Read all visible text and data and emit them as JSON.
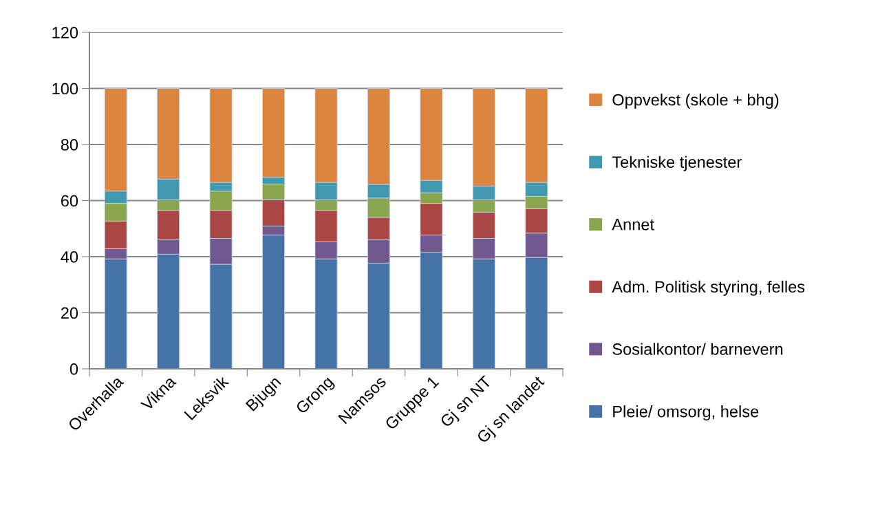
{
  "chart_data": {
    "type": "bar",
    "stacked": true,
    "categories": [
      "Overhalla",
      "Vikna",
      "Leksvik",
      "Bjugn",
      "Grong",
      "Namsos",
      "Gruppe 1",
      "Gj sn NT",
      "Gj sn landet"
    ],
    "series": [
      {
        "name": "Pleie/ omsorg, helse",
        "color": "#4572a7",
        "values": [
          39.2,
          40.9,
          37.3,
          47.7,
          39.2,
          37.7,
          41.6,
          39.2,
          39.7
        ]
      },
      {
        "name": "Sosialkontor/ barnevern",
        "color": "#71588f",
        "values": [
          3.6,
          5.1,
          9.2,
          3.2,
          6.1,
          8.3,
          6.1,
          7.3,
          8.7
        ]
      },
      {
        "name": "Adm. Politisk styring, felles",
        "color": "#aa4643",
        "values": [
          9.9,
          10.5,
          10.0,
          9.4,
          11.2,
          8.0,
          11.3,
          9.4,
          8.7
        ]
      },
      {
        "name": "Annet",
        "color": "#89a54e",
        "values": [
          6.3,
          3.8,
          6.9,
          5.6,
          3.8,
          6.9,
          3.8,
          4.4,
          4.4
        ]
      },
      {
        "name": "Tekniske tjenester",
        "color": "#4198af",
        "values": [
          4.4,
          7.4,
          3.1,
          2.5,
          6.2,
          4.9,
          4.4,
          4.9,
          5.0
        ]
      },
      {
        "name": "Oppvekst (skole + bhg)",
        "color": "#db843d",
        "values": [
          36.6,
          32.3,
          33.5,
          31.6,
          33.5,
          34.2,
          32.8,
          34.8,
          33.5
        ]
      }
    ],
    "ylim": [
      0,
      120
    ],
    "yticks": [
      0,
      20,
      40,
      60,
      80,
      100,
      120
    ],
    "grid": "y",
    "legend": "right"
  }
}
